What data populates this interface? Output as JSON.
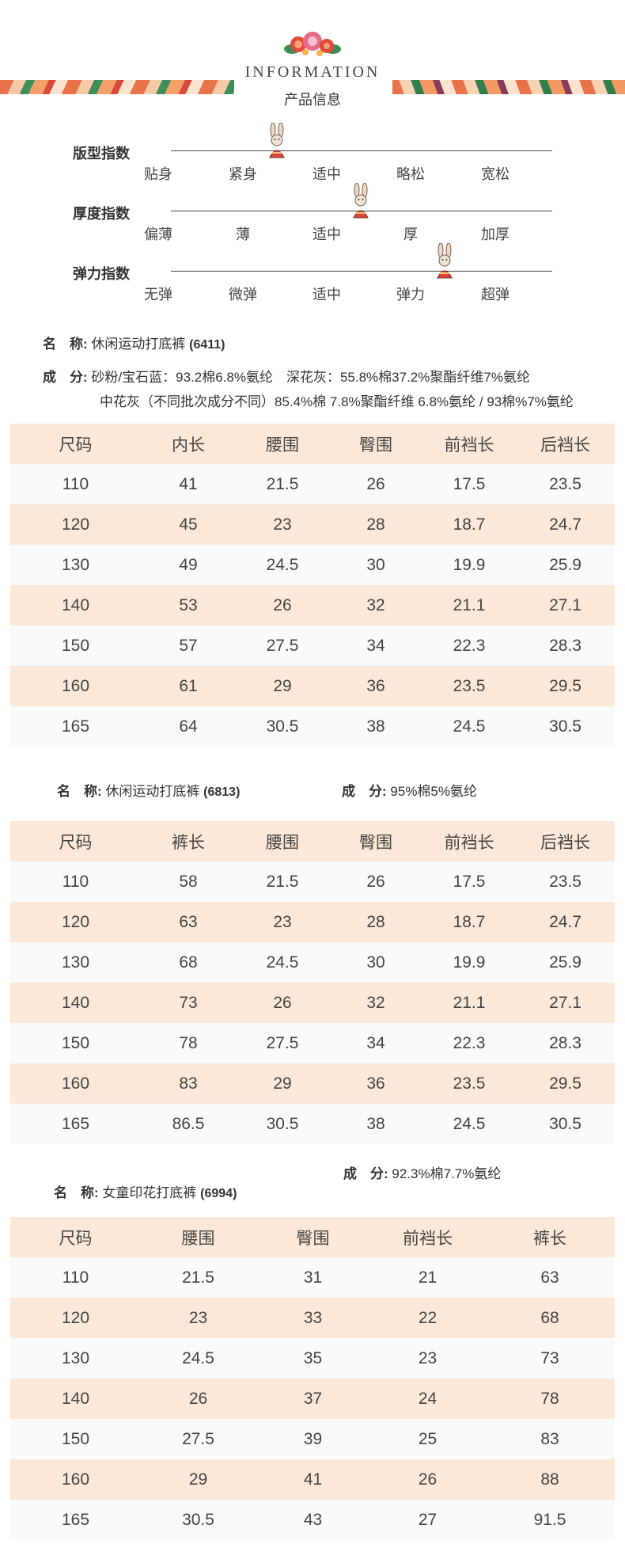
{
  "header": {
    "title_en": "INFORMATION",
    "title_cn": "产品信息"
  },
  "indices": [
    {
      "label": "版型指数",
      "options": [
        "贴身",
        "紧身",
        "适中",
        "略松",
        "宽松"
      ],
      "selected": 1
    },
    {
      "label": "厚度指数",
      "options": [
        "偏薄",
        "薄",
        "适中",
        "厚",
        "加厚"
      ],
      "selected": 2
    },
    {
      "label": "弹力指数",
      "options": [
        "无弹",
        "微弹",
        "适中",
        "弹力",
        "超弹"
      ],
      "selected": 3
    }
  ],
  "products": [
    {
      "name_label": "名　称:",
      "name_value": "休闲运动打底裤",
      "code": "(6411)",
      "comp_label": "成　分:",
      "comp_line1": "砂粉/宝石蓝：93.2棉6.8%氨纶　深花灰：55.8%棉37.2%聚酯纤维7%氨纶",
      "comp_line2": "中花灰（不同批次成分不同）85.4%棉 7.8%聚酯纤维 6.8%氨纶 / 93棉%7%氨纶",
      "table": {
        "headers": [
          "尺码",
          "内长",
          "腰围",
          "臀围",
          "前裆长",
          "后裆长"
        ],
        "rows": [
          [
            "110",
            "41",
            "21.5",
            "26",
            "17.5",
            "23.5"
          ],
          [
            "120",
            "45",
            "23",
            "28",
            "18.7",
            "24.7"
          ],
          [
            "130",
            "49",
            "24.5",
            "30",
            "19.9",
            "25.9"
          ],
          [
            "140",
            "53",
            "26",
            "32",
            "21.1",
            "27.1"
          ],
          [
            "150",
            "57",
            "27.5",
            "34",
            "22.3",
            "28.3"
          ],
          [
            "160",
            "61",
            "29",
            "36",
            "23.5",
            "29.5"
          ],
          [
            "165",
            "64",
            "30.5",
            "38",
            "24.5",
            "30.5"
          ]
        ]
      }
    },
    {
      "name_label": "名　称:",
      "name_value": "休闲运动打底裤",
      "code": "(6813)",
      "comp_label": "成　分:",
      "comp_value": "95%棉5%氨纶",
      "table": {
        "headers": [
          "尺码",
          "裤长",
          "腰围",
          "臀围",
          "前裆长",
          "后裆长"
        ],
        "rows": [
          [
            "110",
            "58",
            "21.5",
            "26",
            "17.5",
            "23.5"
          ],
          [
            "120",
            "63",
            "23",
            "28",
            "18.7",
            "24.7"
          ],
          [
            "130",
            "68",
            "24.5",
            "30",
            "19.9",
            "25.9"
          ],
          [
            "140",
            "73",
            "26",
            "32",
            "21.1",
            "27.1"
          ],
          [
            "150",
            "78",
            "27.5",
            "34",
            "22.3",
            "28.3"
          ],
          [
            "160",
            "83",
            "29",
            "36",
            "23.5",
            "29.5"
          ],
          [
            "165",
            "86.5",
            "30.5",
            "38",
            "24.5",
            "30.5"
          ]
        ]
      }
    },
    {
      "name_label": "名　称:",
      "name_value": "女童印花打底裤",
      "code": "(6994)",
      "comp_label": "成　分:",
      "comp_value": "92.3%棉7.7%氨纶",
      "table": {
        "headers": [
          "尺码",
          "腰围",
          "臀围",
          "前裆长",
          "裤长"
        ],
        "rows": [
          [
            "110",
            "21.5",
            "31",
            "21",
            "63"
          ],
          [
            "120",
            "23",
            "33",
            "22",
            "68"
          ],
          [
            "130",
            "24.5",
            "35",
            "23",
            "73"
          ],
          [
            "140",
            "26",
            "37",
            "24",
            "78"
          ],
          [
            "150",
            "27.5",
            "39",
            "25",
            "83"
          ],
          [
            "160",
            "29",
            "41",
            "26",
            "88"
          ],
          [
            "165",
            "30.5",
            "43",
            "27",
            "91.5"
          ]
        ]
      }
    }
  ]
}
